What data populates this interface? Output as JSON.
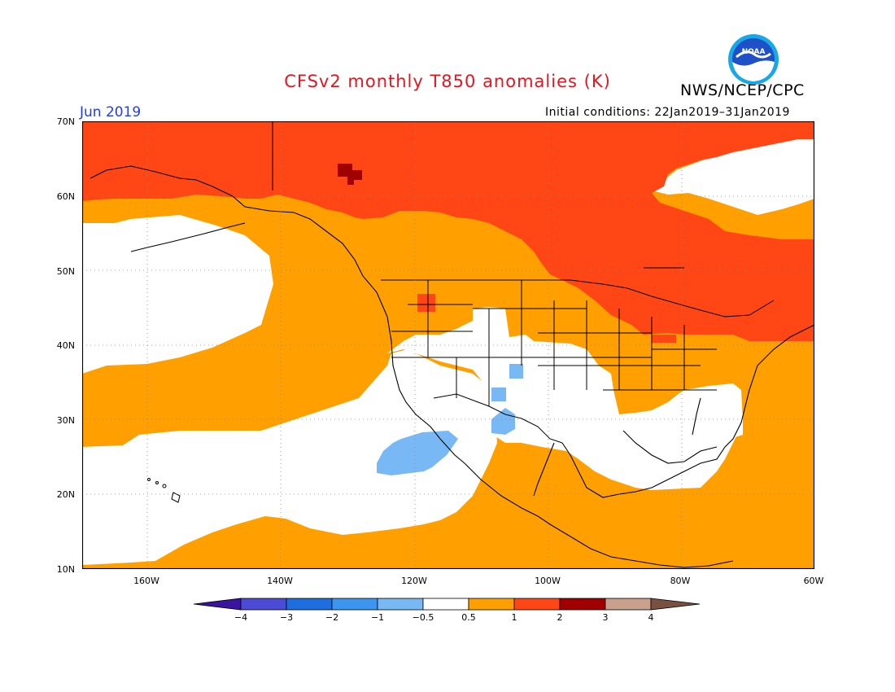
{
  "title": "CFSv2 monthly T850 anomalies (K)",
  "agency": "NWS/NCEP/CPC",
  "logo_text": "NOAA",
  "month_label": "Jun 2019",
  "init_label": "Initial conditions: 22Jan2019–31Jan2019",
  "lat_labels": [
    "70N",
    "60N",
    "50N",
    "40N",
    "30N",
    "20N",
    "10N"
  ],
  "lon_labels": [
    "160W",
    "140W",
    "120W",
    "100W",
    "80W",
    "60W"
  ],
  "colorbar": {
    "labels": [
      "−4",
      "−3",
      "−2",
      "−1",
      "−0.5",
      "0.5",
      "1",
      "2",
      "3",
      "4"
    ],
    "colors": [
      "#3a14a0",
      "#4b4bd6",
      "#1e6ee0",
      "#3c96f0",
      "#78b9f5",
      "#ffffff",
      "#ffa000",
      "#ff4614",
      "#a00000",
      "#c8a08c",
      "#7a5040"
    ]
  },
  "map_colors": {
    "warm1": "#ffa000",
    "warm2": "#ff4614",
    "warm3": "#a00000",
    "cool1": "#78b9f5",
    "neutral": "#ffffff"
  }
}
